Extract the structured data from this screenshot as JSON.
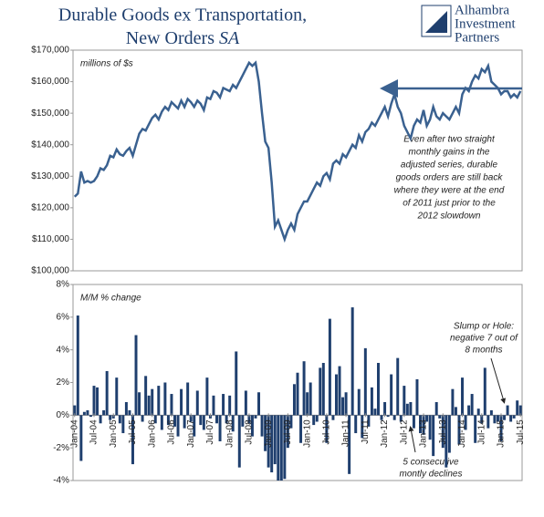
{
  "header": {
    "title_line1": "Durable Goods ex Transportation,",
    "title_line2": "New Orders",
    "title_suffix": "SA",
    "logo": [
      "Alhambra",
      "Investment",
      "Partners"
    ]
  },
  "chart_data": [
    {
      "type": "line",
      "color": "#3a6190",
      "ylim": [
        100000,
        170000
      ],
      "yticks": [
        {
          "value": 100000,
          "label": "$100,000"
        },
        {
          "value": 110000,
          "label": "$110,000"
        },
        {
          "value": 120000,
          "label": "$120,000"
        },
        {
          "value": 130000,
          "label": "$130,000"
        },
        {
          "value": 140000,
          "label": "$140,000"
        },
        {
          "value": 150000,
          "label": "$150,000"
        },
        {
          "value": 160000,
          "label": "$160,000"
        },
        {
          "value": 170000,
          "label": "$170,000"
        }
      ],
      "annotations": [
        "millions of $s",
        "Even after two straight",
        "monthly gains in the",
        "adjusted series, durable",
        "goods orders are still back",
        "where they were at the end",
        "of 2011 just prior to the",
        "2012 slowdown"
      ],
      "values": [
        123500,
        124500,
        131500,
        128000,
        128500,
        128000,
        128500,
        130000,
        132500,
        132000,
        133500,
        136500,
        136000,
        138500,
        137000,
        136500,
        138000,
        139000,
        136500,
        140000,
        143500,
        145000,
        144500,
        146500,
        148500,
        149500,
        148000,
        150500,
        152000,
        151000,
        153500,
        152500,
        151500,
        154000,
        152000,
        154500,
        153500,
        152000,
        154000,
        153000,
        151000,
        155000,
        154500,
        157000,
        156500,
        155000,
        158000,
        157500,
        157000,
        159000,
        158000,
        160000,
        162000,
        164000,
        166000,
        165000,
        166000,
        160000,
        150000,
        141000,
        139000,
        128000,
        114000,
        116000,
        113000,
        110000,
        113000,
        115000,
        113000,
        118000,
        120000,
        122000,
        122000,
        124000,
        126000,
        128000,
        127000,
        130000,
        131000,
        129000,
        134000,
        135000,
        134000,
        137000,
        136000,
        138000,
        140000,
        139000,
        143000,
        141000,
        144000,
        145000,
        147000,
        146000,
        148000,
        150000,
        152000,
        149000,
        153000,
        156000,
        152000,
        150000,
        146000,
        144000,
        142000,
        146000,
        148000,
        147000,
        151000,
        146000,
        148000,
        152000,
        149000,
        148000,
        150000,
        149000,
        148000,
        150000,
        152000,
        150000,
        156000,
        158000,
        157000,
        160000,
        162000,
        161000,
        164000,
        163000,
        165000,
        160000,
        159000,
        158000,
        156000,
        157000,
        157000,
        155000,
        156000,
        155000,
        157000
      ]
    },
    {
      "type": "bar",
      "color": "#1f3f6e",
      "ylim": [
        -4,
        8
      ],
      "yticks": [
        {
          "value": -4,
          "label": "-4%"
        },
        {
          "value": -2,
          "label": "-2%"
        },
        {
          "value": 0,
          "label": "0%"
        },
        {
          "value": 2,
          "label": "2%"
        },
        {
          "value": 4,
          "label": "4%"
        },
        {
          "value": 6,
          "label": "6%"
        },
        {
          "value": 8,
          "label": "8%"
        }
      ],
      "annotations": [
        "M/M % change",
        "Slump or Hole:",
        "negative 7 out of",
        "8 months",
        "5 consecutive",
        "montly declines"
      ],
      "categories": [
        "Jan-04",
        null,
        null,
        null,
        null,
        null,
        "Jul-04",
        null,
        null,
        null,
        null,
        null,
        "Jan-05",
        null,
        null,
        null,
        null,
        null,
        "Jul-05",
        null,
        null,
        null,
        null,
        null,
        "Jan-06",
        null,
        null,
        null,
        null,
        null,
        "Jul-06",
        null,
        null,
        null,
        null,
        null,
        "Jan-07",
        null,
        null,
        null,
        null,
        null,
        "Jul-07",
        null,
        null,
        null,
        null,
        null,
        "Jan-08",
        null,
        null,
        null,
        null,
        null,
        "Jul-08",
        null,
        null,
        null,
        null,
        null,
        "Jan-09",
        null,
        null,
        null,
        null,
        null,
        "Jul-09",
        null,
        null,
        null,
        null,
        null,
        "Jan-10",
        null,
        null,
        null,
        null,
        null,
        "Jul-10",
        null,
        null,
        null,
        null,
        null,
        "Jan-11",
        null,
        null,
        null,
        null,
        null,
        "Jul-11",
        null,
        null,
        null,
        null,
        null,
        "Jan-12",
        null,
        null,
        null,
        null,
        null,
        "Jul-12",
        null,
        null,
        null,
        null,
        null,
        "Jan-13",
        null,
        null,
        null,
        null,
        null,
        "Jul-13",
        null,
        null,
        null,
        null,
        null,
        "Jan-14",
        null,
        null,
        null,
        null,
        null,
        "Jul-14",
        null,
        null,
        null,
        null,
        null,
        "Jan-15",
        null,
        null,
        null,
        null,
        null,
        "Jul-15"
      ],
      "values": [
        0.6,
        6.1,
        -2.8,
        0.2,
        0.3,
        -0.1,
        1.8,
        1.7,
        -0.5,
        0.3,
        2.7,
        -0.3,
        -0.2,
        2.3,
        -0.5,
        -1.1,
        0.8,
        0.3,
        -3.0,
        4.9,
        1.4,
        -0.4,
        2.4,
        1.2,
        1.6,
        -0.5,
        1.8,
        -0.9,
        2.0,
        -0.6,
        1.3,
        -0.7,
        -1.3,
        1.6,
        -0.8,
        2.0,
        -0.4,
        -1.3,
        1.5,
        -0.6,
        -0.9,
        2.3,
        -0.2,
        1.2,
        -0.5,
        -1.6,
        1.3,
        -0.5,
        1.2,
        -1.0,
        3.9,
        -3.2,
        -0.7,
        1.5,
        -0.5,
        -1.3,
        -0.2,
        1.4,
        -1.3,
        -2.2,
        -3.2,
        -3.5,
        -3.0,
        -4.0,
        -4.0,
        -3.9,
        -2.0,
        -0.8,
        1.9,
        2.6,
        -1.7,
        3.3,
        1.4,
        2.0,
        -0.6,
        -0.4,
        2.9,
        3.2,
        -1.7,
        5.9,
        -0.3,
        2.5,
        3.0,
        1.1,
        1.4,
        -3.6,
        6.6,
        -1.1,
        1.6,
        -1.4,
        4.1,
        -0.7,
        1.7,
        0.4,
        3.2,
        -0.3,
        0.8,
        -0.1,
        2.5,
        -0.3,
        3.5,
        -0.4,
        1.8,
        0.7,
        0.8,
        -0.8,
        2.2,
        -1.1,
        -1.2,
        -0.4,
        -1.5,
        -2.5,
        0.8,
        -0.2,
        -2.0,
        -3.2,
        -2.3,
        1.6,
        0.5,
        -1.8,
        2.3,
        -0.9,
        0.6,
        1.3,
        -1.7,
        0.4,
        -0.5,
        2.9,
        -0.8,
        0.3,
        -0.5,
        -0.4,
        -1.6,
        -0.3,
        0.6,
        -0.4,
        -0.2,
        0.9,
        0.6
      ]
    }
  ]
}
